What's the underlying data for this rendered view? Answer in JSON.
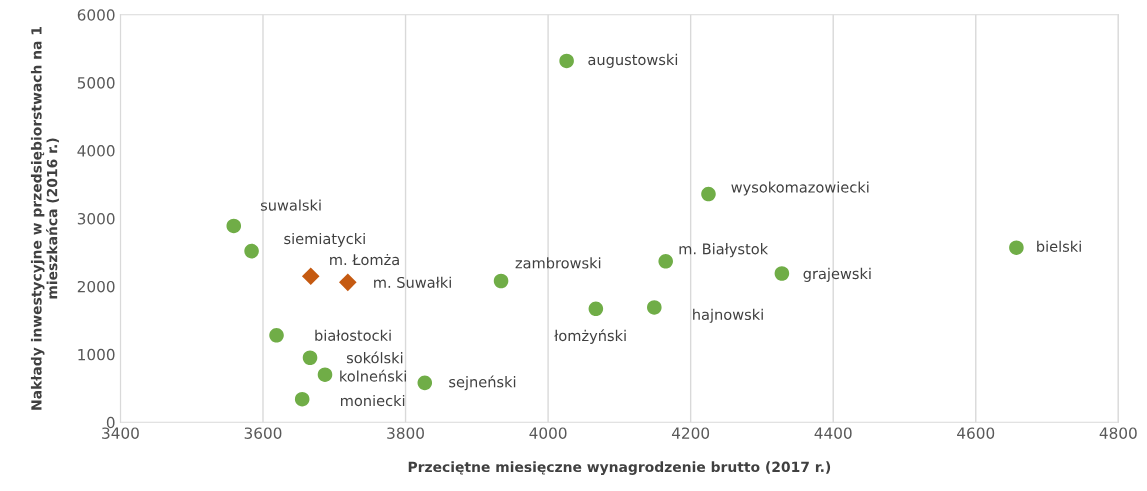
{
  "chart_data": {
    "type": "scatter",
    "xlabel": "Przeciętne miesięczne wynagrodzenie brutto (2017 r.)",
    "ylabel": "Nakłady inwestycyjne w przedsiębiorstwach na 1\nmieszkańca (2016 r.)",
    "xlim": [
      3400,
      4800
    ],
    "xticks": [
      3400,
      3600,
      3800,
      4000,
      4200,
      4400,
      4600,
      4800
    ],
    "ylim": [
      0,
      6000
    ],
    "yticks": [
      0,
      1000,
      2000,
      3000,
      4000,
      5000,
      6000
    ],
    "grid": "x",
    "series": [
      {
        "color": "#70ad47",
        "marker": "circle",
        "x": [
          4026,
          4225,
          3559,
          3584,
          3934,
          4165,
          4328,
          4657,
          4067,
          4149,
          3619,
          3666,
          3687,
          3827,
          3655
        ],
        "values": [
          5320,
          3360,
          2890,
          2520,
          2080,
          2370,
          2190,
          2570,
          1670,
          1690,
          1280,
          950,
          700,
          580,
          340
        ]
      },
      {
        "color": "#c55a11",
        "marker": "diamond",
        "x": [
          3667,
          3719
        ],
        "values": [
          2150,
          2060
        ]
      }
    ],
    "annotations": [
      {
        "text": "augustowski",
        "x": 4026,
        "y": 5320
      },
      {
        "text": "wysokomazowiecki",
        "x": 4225,
        "y": 3360
      },
      {
        "text": "suwalski",
        "x": 3559,
        "y": 2890
      },
      {
        "text": "siemiatycki",
        "x": 3584,
        "y": 2520
      },
      {
        "text": "zambrowski",
        "x": 3934,
        "y": 2080
      },
      {
        "text": "m. Białystok",
        "x": 4165,
        "y": 2370
      },
      {
        "text": "grajewski",
        "x": 4328,
        "y": 2190
      },
      {
        "text": "bielski",
        "x": 4657,
        "y": 2570
      },
      {
        "text": "łomżyński",
        "x": 4067,
        "y": 1670
      },
      {
        "text": "hajnowski",
        "x": 4149,
        "y": 1690
      },
      {
        "text": "białostocki",
        "x": 3619,
        "y": 1280
      },
      {
        "text": "sokólski",
        "x": 3666,
        "y": 950
      },
      {
        "text": "kolneński",
        "x": 3687,
        "y": 700
      },
      {
        "text": "sejneński",
        "x": 3827,
        "y": 580
      },
      {
        "text": "moniecki",
        "x": 3655,
        "y": 340
      },
      {
        "text": "m. Łomża",
        "x": 3667,
        "y": 2150
      },
      {
        "text": "m. Suwałki",
        "x": 3719,
        "y": 2060
      }
    ]
  }
}
